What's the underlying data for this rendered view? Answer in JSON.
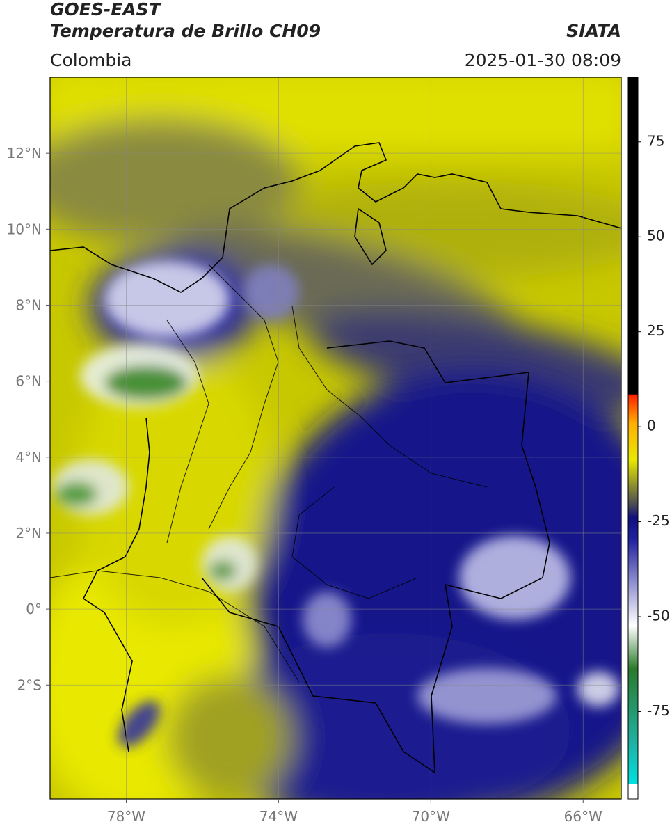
{
  "header": {
    "title": "GOES-EAST",
    "subtitle": "Temperatura de Brillo CH09",
    "region": "Colombia",
    "source": "SIATA",
    "datetime": "2025-01-30 08:09"
  },
  "map": {
    "xlim": [
      -80,
      -65
    ],
    "ylim": [
      -5,
      14
    ],
    "grid": true,
    "xticks": [
      {
        "value": -78,
        "label": "78°W"
      },
      {
        "value": -74,
        "label": "74°W"
      },
      {
        "value": -70,
        "label": "70°W"
      },
      {
        "value": -66,
        "label": "66°W"
      }
    ],
    "yticks": [
      {
        "value": 12,
        "label": "12°N"
      },
      {
        "value": 10,
        "label": "10°N"
      },
      {
        "value": 8,
        "label": "8°N"
      },
      {
        "value": 6,
        "label": "6°N"
      },
      {
        "value": 4,
        "label": "4°N"
      },
      {
        "value": 2,
        "label": "2°N"
      },
      {
        "value": 0,
        "label": "0°"
      },
      {
        "value": -2,
        "label": "2°S"
      }
    ]
  },
  "colorbar": {
    "lim": [
      -98,
      92
    ],
    "ticks": [
      75,
      50,
      25,
      0,
      -25,
      -50,
      -75
    ]
  }
}
